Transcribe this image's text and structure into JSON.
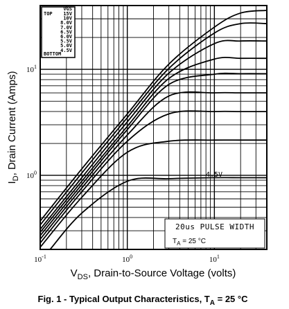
{
  "chart_data": {
    "type": "line",
    "x_scale": "log",
    "y_scale": "log",
    "xlim": [
      0.1,
      40
    ],
    "ylim": [
      0.2,
      40
    ],
    "x_ticks": [
      {
        "value": 0.1,
        "base": "10",
        "exp": "-1"
      },
      {
        "value": 1,
        "base": "10",
        "exp": "0"
      },
      {
        "value": 10,
        "base": "10",
        "exp": "1"
      }
    ],
    "y_ticks": [
      {
        "value": 1,
        "base": "10",
        "exp": "0"
      },
      {
        "value": 10,
        "base": "10",
        "exp": "1"
      }
    ],
    "xlabel": {
      "main": "V",
      "sub": "DS",
      "rest": ", Drain-to-Source Voltage (volts)"
    },
    "ylabel": {
      "main": "I",
      "sub": "D",
      "rest": ", Drain Current (Amps)"
    },
    "grid": true,
    "legend": {
      "header": "VGS",
      "top_label": "TOP",
      "bottom_label": "BOTTOM",
      "entries": [
        "15V",
        "10V",
        "8.0V",
        "7.0V",
        "6.5V",
        "6.0V",
        "5.5V",
        "5.0V",
        "4.5V"
      ]
    },
    "series": [
      {
        "vgs": 15.0,
        "values": [
          [
            0.1,
            0.37
          ],
          [
            0.3,
            1.15
          ],
          [
            1,
            3.8
          ],
          [
            3,
            11.2
          ],
          [
            10,
            25
          ],
          [
            20,
            34
          ],
          [
            40,
            36
          ]
        ]
      },
      {
        "vgs": 10.0,
        "values": [
          [
            0.1,
            0.34
          ],
          [
            0.3,
            1.05
          ],
          [
            1,
            3.5
          ],
          [
            3,
            10.2
          ],
          [
            10,
            22
          ],
          [
            20,
            27
          ],
          [
            40,
            27
          ]
        ]
      },
      {
        "vgs": 8.0,
        "values": [
          [
            0.1,
            0.31
          ],
          [
            0.3,
            0.95
          ],
          [
            1,
            3.2
          ],
          [
            3,
            9.2
          ],
          [
            10,
            17.5
          ],
          [
            20,
            18.5
          ],
          [
            40,
            18.5
          ]
        ]
      },
      {
        "vgs": 7.0,
        "values": [
          [
            0.1,
            0.29
          ],
          [
            0.3,
            0.88
          ],
          [
            1,
            2.9
          ],
          [
            3,
            8.2
          ],
          [
            10,
            12.5
          ],
          [
            20,
            12.7
          ],
          [
            40,
            12.7
          ]
        ]
      },
      {
        "vgs": 6.5,
        "values": [
          [
            0.1,
            0.27
          ],
          [
            0.3,
            0.82
          ],
          [
            1,
            2.7
          ],
          [
            3,
            7.2
          ],
          [
            10,
            9.0
          ],
          [
            20,
            9.1
          ],
          [
            40,
            9.1
          ]
        ]
      },
      {
        "vgs": 6.0,
        "values": [
          [
            0.1,
            0.25
          ],
          [
            0.3,
            0.76
          ],
          [
            1,
            2.4
          ],
          [
            3,
            5.6
          ],
          [
            10,
            6.0
          ],
          [
            20,
            6.0
          ],
          [
            40,
            6.0
          ]
        ]
      },
      {
        "vgs": 5.5,
        "values": [
          [
            0.1,
            0.23
          ],
          [
            0.3,
            0.7
          ],
          [
            1,
            2.1
          ],
          [
            3,
            3.8
          ],
          [
            10,
            4.0
          ],
          [
            20,
            4.0
          ],
          [
            40,
            4.0
          ]
        ]
      },
      {
        "vgs": 5.0,
        "values": [
          [
            0.1,
            0.21
          ],
          [
            0.3,
            0.62
          ],
          [
            1,
            1.65
          ],
          [
            3,
            2.1
          ],
          [
            10,
            2.15
          ],
          [
            20,
            2.15
          ],
          [
            40,
            2.15
          ]
        ]
      },
      {
        "vgs": 4.5,
        "values": [
          [
            0.13,
            0.2
          ],
          [
            0.3,
            0.44
          ],
          [
            1,
            0.88
          ],
          [
            3,
            0.93
          ],
          [
            10,
            0.95
          ],
          [
            20,
            0.95
          ],
          [
            40,
            0.95
          ]
        ]
      }
    ],
    "curve_label": "4.5V",
    "annotation_pulse": "20us PULSE WIDTH",
    "annotation_ta": {
      "main": "T",
      "sub": "A",
      "rest": " = 25 °C"
    }
  },
  "caption": {
    "lead": "Fig. 1 - Typical Output Characteristics, T",
    "sub": "A",
    "rest": " = 25 °C"
  }
}
